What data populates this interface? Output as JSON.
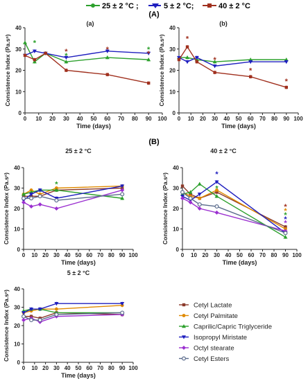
{
  "figure": {
    "top_legend": [
      {
        "label": "25 ± 2 °C ;",
        "color": "#2ca02c"
      },
      {
        "label": "5 ± 2 °C;",
        "color": "#1f1fbf"
      },
      {
        "label": "40 ± 2 °C",
        "color": "#a0301e"
      }
    ],
    "section_a": "(A)",
    "section_b": "(B)"
  },
  "bottom_legend": [
    {
      "label": "Cetyl Lactate",
      "color": "#8b3a2b"
    },
    {
      "label": "Cetyl Palmitate",
      "color": "#e08a00"
    },
    {
      "label": "Caprilic/Capric Triglyceride",
      "color": "#2ca02c"
    },
    {
      "label": "Isopropyl Miristate",
      "color": "#1f1fbf"
    },
    {
      "label": "Octyl   stearate",
      "color": "#9b30d0"
    },
    {
      "label": "Cetyl Esters",
      "color": "#5a6b8c"
    }
  ],
  "chart_data": [
    {
      "panel": "a-panel",
      "type": "line",
      "title": "(a)",
      "xlabel": "Time (days)",
      "ylabel": "Consistence Index (Pa.sⁿ)",
      "xlim": [
        0,
        100
      ],
      "ylim": [
        0,
        40
      ],
      "xticks": [
        "0",
        "10",
        "20",
        "30",
        "40",
        "50",
        "60",
        "70",
        "80",
        "90",
        "100"
      ],
      "yticks": [
        "0",
        "10",
        "20",
        "30",
        "40"
      ],
      "grid": false,
      "x": [
        0,
        7,
        15,
        30,
        60,
        90
      ],
      "series": [
        {
          "name": "25 ± 2 °C",
          "color": "#2ca02c",
          "values": [
            33,
            24,
            28,
            24,
            26,
            25
          ]
        },
        {
          "name": "5 ± 2 °C",
          "color": "#1f1fbf",
          "values": [
            27,
            29,
            28,
            26,
            29,
            28
          ]
        },
        {
          "name": "40 ± 2 °C",
          "color": "#a0301e",
          "values": [
            27,
            25,
            28,
            20,
            18,
            14
          ]
        }
      ],
      "annotations": [
        {
          "x": 7,
          "y": 33,
          "text": "*",
          "color": "#2ca02c"
        },
        {
          "x": 30,
          "y": 29,
          "text": "*",
          "color": "#a0301e"
        },
        {
          "x": 30,
          "y": 27,
          "text": "*",
          "color": "#2ca02c"
        },
        {
          "x": 60,
          "y": 30,
          "text": "*",
          "color": "#a0301e"
        },
        {
          "x": 90,
          "y": 30,
          "text": "*",
          "color": "#2ca02c"
        },
        {
          "x": 90,
          "y": 28,
          "text": "*",
          "color": "#a0301e"
        }
      ]
    },
    {
      "panel": "b-panel",
      "type": "line",
      "title": "(b)",
      "xlabel": "Time (days)",
      "ylabel": "Consistence Index (Pa.sⁿ)",
      "xlim": [
        0,
        100
      ],
      "ylim": [
        0,
        40
      ],
      "xticks": [
        "0",
        "10",
        "20",
        "30",
        "40",
        "50",
        "60",
        "70",
        "80",
        "90",
        "100"
      ],
      "yticks": [
        "0",
        "10",
        "20",
        "30",
        "40"
      ],
      "grid": false,
      "x": [
        0,
        7,
        15,
        30,
        60,
        90
      ],
      "series": [
        {
          "name": "25 ± 2 °C",
          "color": "#2ca02c",
          "values": [
            26,
            26,
            25,
            24,
            25,
            25
          ]
        },
        {
          "name": "5 ± 2 °C",
          "color": "#1f1fbf",
          "values": [
            26,
            24,
            26,
            22,
            24,
            24
          ]
        },
        {
          "name": "40 ± 2 °C",
          "color": "#a0301e",
          "values": [
            25,
            31,
            24,
            19,
            17,
            12
          ]
        }
      ],
      "annotations": [
        {
          "x": 7,
          "y": 35,
          "text": "*",
          "color": "#a0301e"
        },
        {
          "x": 30,
          "y": 25,
          "text": "*",
          "color": "#a0301e"
        },
        {
          "x": 60,
          "y": 20,
          "text": "*",
          "color": "#a0301e"
        },
        {
          "x": 90,
          "y": 15,
          "text": "*",
          "color": "#a0301e"
        }
      ]
    },
    {
      "panel": "b25-panel",
      "type": "line",
      "title": "25 ± 2 °C",
      "xlabel": "Time (days)",
      "ylabel": "Consistence Index (Pa.sⁿ)",
      "xlim": [
        0,
        100
      ],
      "ylim": [
        0,
        40
      ],
      "xticks": [
        "0",
        "10",
        "20",
        "30",
        "40",
        "50",
        "60",
        "70",
        "80",
        "90",
        "100"
      ],
      "yticks": [
        "0",
        "10",
        "20",
        "30",
        "40"
      ],
      "grid": false,
      "x": [
        0,
        7,
        15,
        30,
        90
      ],
      "series": [
        {
          "name": "Cetyl Lactate",
          "color": "#8b3a2b",
          "values": [
            26,
            26,
            26,
            29,
            30
          ]
        },
        {
          "name": "Cetyl Palmitate",
          "color": "#e08a00",
          "values": [
            27,
            29,
            27,
            30,
            31
          ]
        },
        {
          "name": "Caprilic/Capric Triglyceride",
          "color": "#2ca02c",
          "values": [
            27,
            28,
            29,
            29,
            25
          ]
        },
        {
          "name": "Isopropyl Miristate",
          "color": "#1f1fbf",
          "values": [
            24,
            27,
            29,
            25,
            31
          ]
        },
        {
          "name": "Octyl   stearate",
          "color": "#9b30d0",
          "values": [
            23,
            21,
            22,
            20,
            29
          ]
        },
        {
          "name": "Cetyl Esters",
          "color": "#5a6b8c",
          "values": [
            25,
            25,
            26,
            24,
            27
          ]
        }
      ],
      "annotations": [
        {
          "x": 30,
          "y": 32,
          "text": "*",
          "color": "#2ca02c"
        }
      ]
    },
    {
      "panel": "b40-panel",
      "type": "line",
      "title": "40 ± 2 °C",
      "xlabel": "Time (days)",
      "ylabel": "Consistence Index (Pa.sⁿ)",
      "xlim": [
        0,
        100
      ],
      "ylim": [
        0,
        40
      ],
      "xticks": [
        "0",
        "10",
        "20",
        "30",
        "40",
        "50",
        "60",
        "70",
        "80",
        "90",
        "100"
      ],
      "yticks": [
        "0",
        "10",
        "20",
        "30",
        "40"
      ],
      "grid": false,
      "x": [
        0,
        7,
        15,
        30,
        90
      ],
      "series": [
        {
          "name": "Cetyl Lactate",
          "color": "#8b3a2b",
          "values": [
            31,
            27,
            25,
            28,
            11
          ]
        },
        {
          "name": "Cetyl Palmitate",
          "color": "#e08a00",
          "values": [
            28,
            26,
            25,
            29,
            10
          ]
        },
        {
          "name": "Caprilic/Capric Triglyceride",
          "color": "#2ca02c",
          "values": [
            27,
            28,
            32,
            26,
            6
          ]
        },
        {
          "name": "Isopropyl Miristate",
          "color": "#1f1fbf",
          "values": [
            26,
            24,
            27,
            33,
            8
          ]
        },
        {
          "name": "Octyl   stearate",
          "color": "#9b30d0",
          "values": [
            25,
            23,
            20,
            18,
            9
          ]
        },
        {
          "name": "Cetyl Esters",
          "color": "#5a6b8c",
          "values": [
            28,
            25,
            22,
            21,
            8
          ]
        }
      ],
      "annotations": [
        {
          "x": 30,
          "y": 37,
          "text": "*",
          "color": "#1f1fbf"
        },
        {
          "x": 30,
          "y": 30,
          "text": "*",
          "color": "#2ca02c"
        },
        {
          "x": 90,
          "y": 21,
          "text": "*",
          "color": "#a0301e"
        },
        {
          "x": 90,
          "y": 19,
          "text": "*",
          "color": "#e08a00"
        },
        {
          "x": 90,
          "y": 17,
          "text": "*",
          "color": "#2ca02c"
        },
        {
          "x": 90,
          "y": 15,
          "text": "*",
          "color": "#1f1fbf"
        },
        {
          "x": 90,
          "y": 13,
          "text": "*",
          "color": "#9b30d0"
        }
      ]
    },
    {
      "panel": "b5-panel",
      "type": "line",
      "title": "5 ± 2 °C",
      "xlabel": "Time (days)",
      "ylabel": "Consistence Index (Pa.sⁿ)",
      "xlim": [
        0,
        100
      ],
      "ylim": [
        0,
        40
      ],
      "xticks": [
        "0",
        "10",
        "20",
        "30",
        "40",
        "50",
        "60",
        "70",
        "80",
        "90",
        "100"
      ],
      "yticks": [
        "0",
        "10",
        "20",
        "30",
        "40"
      ],
      "grid": false,
      "x": [
        0,
        7,
        15,
        30,
        90
      ],
      "series": [
        {
          "name": "Cetyl Lactate",
          "color": "#8b3a2b",
          "values": [
            25,
            25,
            24,
            27,
            26
          ]
        },
        {
          "name": "Cetyl Palmitate",
          "color": "#e08a00",
          "values": [
            27,
            28,
            29,
            29,
            31
          ]
        },
        {
          "name": "Caprilic/Capric Triglyceride",
          "color": "#2ca02c",
          "values": [
            28,
            29,
            29,
            27,
            27
          ]
        },
        {
          "name": "Isopropyl Miristate",
          "color": "#1f1fbf",
          "values": [
            27,
            29,
            29,
            32,
            32
          ]
        },
        {
          "name": "Octyl   stearate",
          "color": "#9b30d0",
          "values": [
            23,
            24,
            22,
            25,
            26
          ]
        },
        {
          "name": "Cetyl Esters",
          "color": "#5a6b8c",
          "values": [
            25,
            23,
            23,
            26,
            27
          ]
        }
      ],
      "annotations": []
    }
  ]
}
